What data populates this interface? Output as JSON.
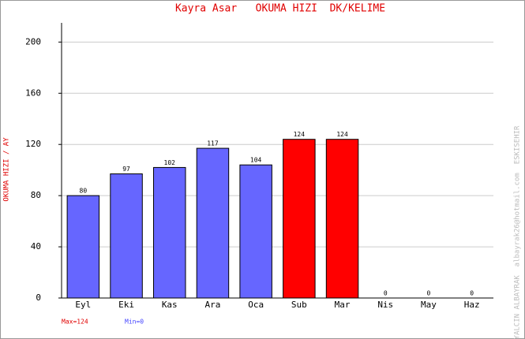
{
  "chart_data": {
    "type": "bar",
    "title": "Kayra Asar   OKUMA HIZI  DK/KELIME",
    "y_label": "OKUMA HIZI / AY",
    "side_note": "YALCIN ALBAYRAK  albayrak26@hotmail.com  ESKISEHIR",
    "categories": [
      "Eyl",
      "Eki",
      "Kas",
      "Ara",
      "Oca",
      "Sub",
      "Mar",
      "Nis",
      "May",
      "Haz"
    ],
    "values": [
      80,
      97,
      102,
      117,
      104,
      124,
      124,
      0,
      0,
      0
    ],
    "colors": [
      "#6666ff",
      "#6666ff",
      "#6666ff",
      "#6666ff",
      "#6666ff",
      "#ff0000",
      "#ff0000",
      "#6666ff",
      "#6666ff",
      "#6666ff"
    ],
    "ylim": [
      0,
      215
    ],
    "yticks": [
      0,
      40,
      80,
      120,
      160,
      200
    ],
    "grid": true,
    "max_label": "Max=124",
    "min_label": "Min=0"
  }
}
